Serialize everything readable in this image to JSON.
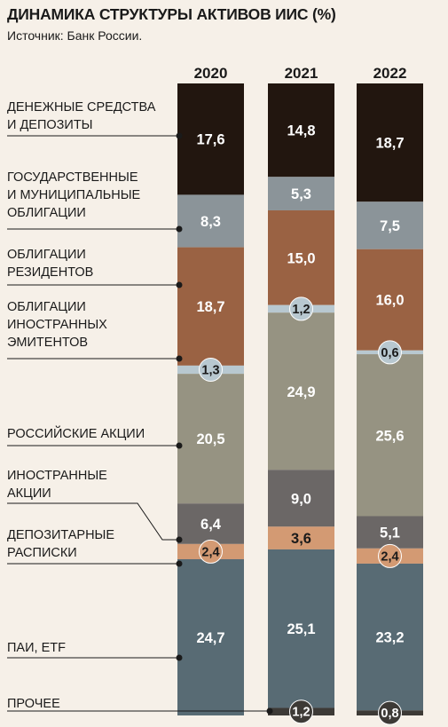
{
  "chart_data": {
    "type": "bar",
    "stacked": true,
    "percent": true,
    "title": "ДИНАМИКА СТРУКТУРЫ АКТИВОВ ИИС (%)",
    "subtitle": "Источник: Банк России.",
    "categories": [
      "2020",
      "2021",
      "2022"
    ],
    "series": [
      {
        "name": "ДЕНЕЖНЫЕ СРЕДСТВА И ДЕПОЗИТЫ",
        "label_lines": [
          "ДЕНЕЖНЫЕ СРЕДСТВА",
          "И ДЕПОЗИТЫ"
        ],
        "color": "#22160f",
        "text_color": "#ffffff",
        "values": [
          17.6,
          14.8,
          18.7
        ],
        "labels": [
          "17,6",
          "14,8",
          "18,7"
        ]
      },
      {
        "name": "ГОСУДАРСТВЕННЫЕ И МУНИЦИПАЛЬНЫЕ ОБЛИГАЦИИ",
        "label_lines": [
          "ГОСУДАРСТВЕННЫЕ",
          "И МУНИЦИПАЛЬНЫЕ",
          "ОБЛИГАЦИИ"
        ],
        "color": "#8b9499",
        "text_color": "#ffffff",
        "values": [
          8.3,
          5.3,
          7.5
        ],
        "labels": [
          "8,3",
          "5,3",
          "7,5"
        ]
      },
      {
        "name": "ОБЛИГАЦИИ РЕЗИДЕНТОВ",
        "label_lines": [
          "ОБЛИГАЦИИ",
          "РЕЗИДЕНТОВ"
        ],
        "color": "#9a6243",
        "text_color": "#ffffff",
        "values": [
          18.7,
          15.0,
          16.0
        ],
        "labels": [
          "18,7",
          "15,0",
          "16,0"
        ]
      },
      {
        "name": "ОБЛИГАЦИИ ИНОСТРАННЫХ ЭМИТЕНТОВ",
        "label_lines": [
          "ОБЛИГАЦИИ",
          "ИНОСТРАННЫХ",
          "ЭМИТЕНТОВ"
        ],
        "color": "#b8c8d0",
        "text_color": "#1a1a1a",
        "values": [
          1.3,
          1.2,
          0.6
        ],
        "labels": [
          "1,3",
          "1,2",
          "0,6"
        ],
        "badge": true
      },
      {
        "name": "РОССИЙСКИЕ АКЦИИ",
        "label_lines": [
          "РОССИЙСКИЕ АКЦИИ"
        ],
        "color": "#969382",
        "text_color": "#ffffff",
        "values": [
          20.5,
          24.9,
          25.6
        ],
        "labels": [
          "20,5",
          "24,9",
          "25,6"
        ]
      },
      {
        "name": "ИНОСТРАННЫЕ АКЦИИ",
        "label_lines": [
          "ИНОСТРАННЫЕ",
          "АКЦИИ"
        ],
        "color": "#6b6766",
        "text_color": "#ffffff",
        "values": [
          6.4,
          9.0,
          5.1
        ],
        "labels": [
          "6,4",
          "9,0",
          "5,1"
        ]
      },
      {
        "name": "ДЕПОЗИТАРНЫЕ РАСПИСКИ",
        "label_lines": [
          "ДЕПОЗИТАРНЫЕ",
          "РАСПИСКИ"
        ],
        "color": "#d39a73",
        "text_color": "#1a1a1a",
        "values": [
          2.4,
          3.6,
          2.4
        ],
        "labels": [
          "2,4",
          "3,6",
          "2,4"
        ],
        "badge_years": [
          0,
          2
        ]
      },
      {
        "name": "ПАИ, ETF",
        "label_lines": [
          "ПАИ, ETF"
        ],
        "color": "#586b74",
        "text_color": "#ffffff",
        "values": [
          24.7,
          25.1,
          23.2
        ],
        "labels": [
          "24,7",
          "25,1",
          "23,2"
        ]
      },
      {
        "name": "ПРОЧЕЕ",
        "label_lines": [
          "ПРОЧЕЕ"
        ],
        "color": "#3d3a36",
        "text_color": "#ffffff",
        "values": [
          0,
          1.2,
          0.8
        ],
        "labels": [
          "",
          "1,2",
          "0,8"
        ],
        "badge": true
      }
    ]
  }
}
